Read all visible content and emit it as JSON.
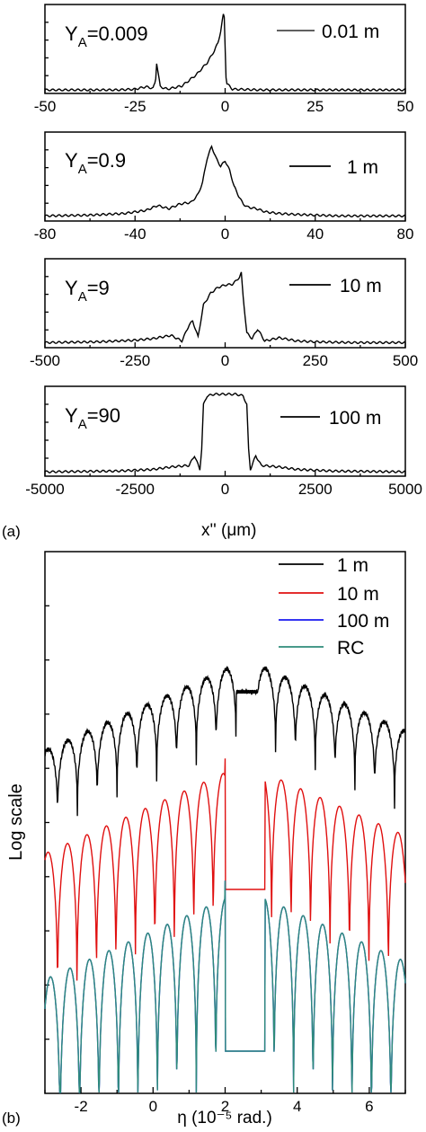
{
  "figure": {
    "panel_a_label": "(a)",
    "panel_b_label": "(b)",
    "panel_a_xlabel": "x'' (μm)",
    "panel_b_xlabel": "η (10⁻⁵ rad.)",
    "panel_b_ylabel": "Log scale"
  },
  "chart_data": [
    {
      "type": "line",
      "panel": "a1",
      "annotation": "Y_A=0.009",
      "legend": "0.01 m",
      "legend_position": "top-right",
      "xlim": [
        -50,
        50
      ],
      "xticks": [
        -50,
        -25,
        0,
        25,
        50
      ],
      "series": [
        {
          "name": "0.01 m",
          "x": [
            -50,
            -30,
            -25,
            -22,
            -20,
            -19.3,
            -19,
            -18,
            -16,
            -12,
            -8,
            -5,
            -3,
            -2,
            -1.2,
            -0.7,
            -0.3,
            0.3,
            2,
            10,
            30,
            50
          ],
          "y": [
            0.01,
            0.01,
            0.02,
            0.05,
            0.03,
            0.12,
            0.35,
            0.05,
            0.02,
            0.06,
            0.2,
            0.35,
            0.5,
            0.6,
            0.75,
            0.9,
            1.0,
            0.1,
            0.02,
            0.01,
            0.01,
            0.01
          ]
        }
      ]
    },
    {
      "type": "line",
      "panel": "a2",
      "annotation": "Y_A=0.9",
      "legend": "1 m",
      "legend_position": "top-right",
      "xlim": [
        -80,
        80
      ],
      "xticks": [
        -80,
        -40,
        0,
        40,
        80
      ],
      "series": [
        {
          "name": "1 m",
          "x": [
            -80,
            -60,
            -45,
            -40,
            -35,
            -30,
            -25,
            -20,
            -15,
            -12,
            -10,
            -8,
            -6,
            -4,
            -2,
            0,
            2,
            4,
            6,
            8,
            10,
            14,
            18,
            24,
            30,
            40,
            50,
            60,
            80
          ],
          "y": [
            0.03,
            0.04,
            0.06,
            0.08,
            0.1,
            0.16,
            0.12,
            0.18,
            0.2,
            0.3,
            0.45,
            0.75,
            0.9,
            0.75,
            0.65,
            0.72,
            0.6,
            0.4,
            0.28,
            0.18,
            0.14,
            0.12,
            0.08,
            0.06,
            0.05,
            0.04,
            0.03,
            0.03,
            0.03
          ]
        }
      ]
    },
    {
      "type": "line",
      "panel": "a3",
      "annotation": "Y_A=9",
      "legend": "10 m",
      "legend_position": "top-right",
      "xlim": [
        -500,
        500
      ],
      "xticks": [
        -500,
        -250,
        0,
        250,
        500
      ],
      "series": [
        {
          "name": "10 m",
          "x": [
            -500,
            -350,
            -250,
            -200,
            -150,
            -120,
            -100,
            -90,
            -75,
            -60,
            -40,
            -20,
            0,
            20,
            30,
            40,
            45,
            50,
            60,
            75,
            90,
            110,
            150,
            200,
            250,
            350,
            500
          ],
          "y": [
            0.03,
            0.04,
            0.06,
            0.08,
            0.12,
            0.05,
            0.25,
            0.3,
            0.1,
            0.5,
            0.65,
            0.72,
            0.75,
            0.76,
            0.8,
            0.85,
            0.9,
            0.6,
            0.15,
            0.08,
            0.2,
            0.05,
            0.09,
            0.05,
            0.04,
            0.03,
            0.03
          ]
        }
      ]
    },
    {
      "type": "line",
      "panel": "a4",
      "annotation": "Y_A=90",
      "legend": "100 m",
      "legend_position": "top-right",
      "xlim": [
        -5000,
        5000
      ],
      "xticks": [
        -5000,
        -2500,
        0,
        2500,
        5000
      ],
      "series": [
        {
          "name": "100 m",
          "x": [
            -5000,
            -3000,
            -2000,
            -1500,
            -1000,
            -850,
            -700,
            -650,
            -600,
            -500,
            -300,
            0,
            300,
            500,
            600,
            650,
            700,
            850,
            1000,
            1500,
            2000,
            3000,
            5000
          ],
          "y": [
            0.02,
            0.03,
            0.05,
            0.08,
            0.1,
            0.22,
            0.05,
            0.3,
            0.85,
            0.96,
            0.98,
            0.98,
            0.98,
            0.96,
            0.85,
            0.3,
            0.05,
            0.22,
            0.1,
            0.08,
            0.05,
            0.03,
            0.02
          ]
        }
      ]
    },
    {
      "type": "line",
      "panel": "b",
      "xlabel": "η (10⁻⁵ rad.)",
      "ylabel": "Log scale",
      "yscale": "log",
      "xlim": [
        -3,
        7
      ],
      "xticks": [
        -2,
        0,
        2,
        4,
        6
      ],
      "legend_position": "top-right",
      "series": [
        {
          "name": "1 m",
          "color": "#000000"
        },
        {
          "name": "10 m",
          "color": "#e01010"
        },
        {
          "name": "100 m",
          "color": "#1a1af0"
        },
        {
          "name": "RC",
          "color": "#2e8b7a"
        }
      ]
    }
  ]
}
